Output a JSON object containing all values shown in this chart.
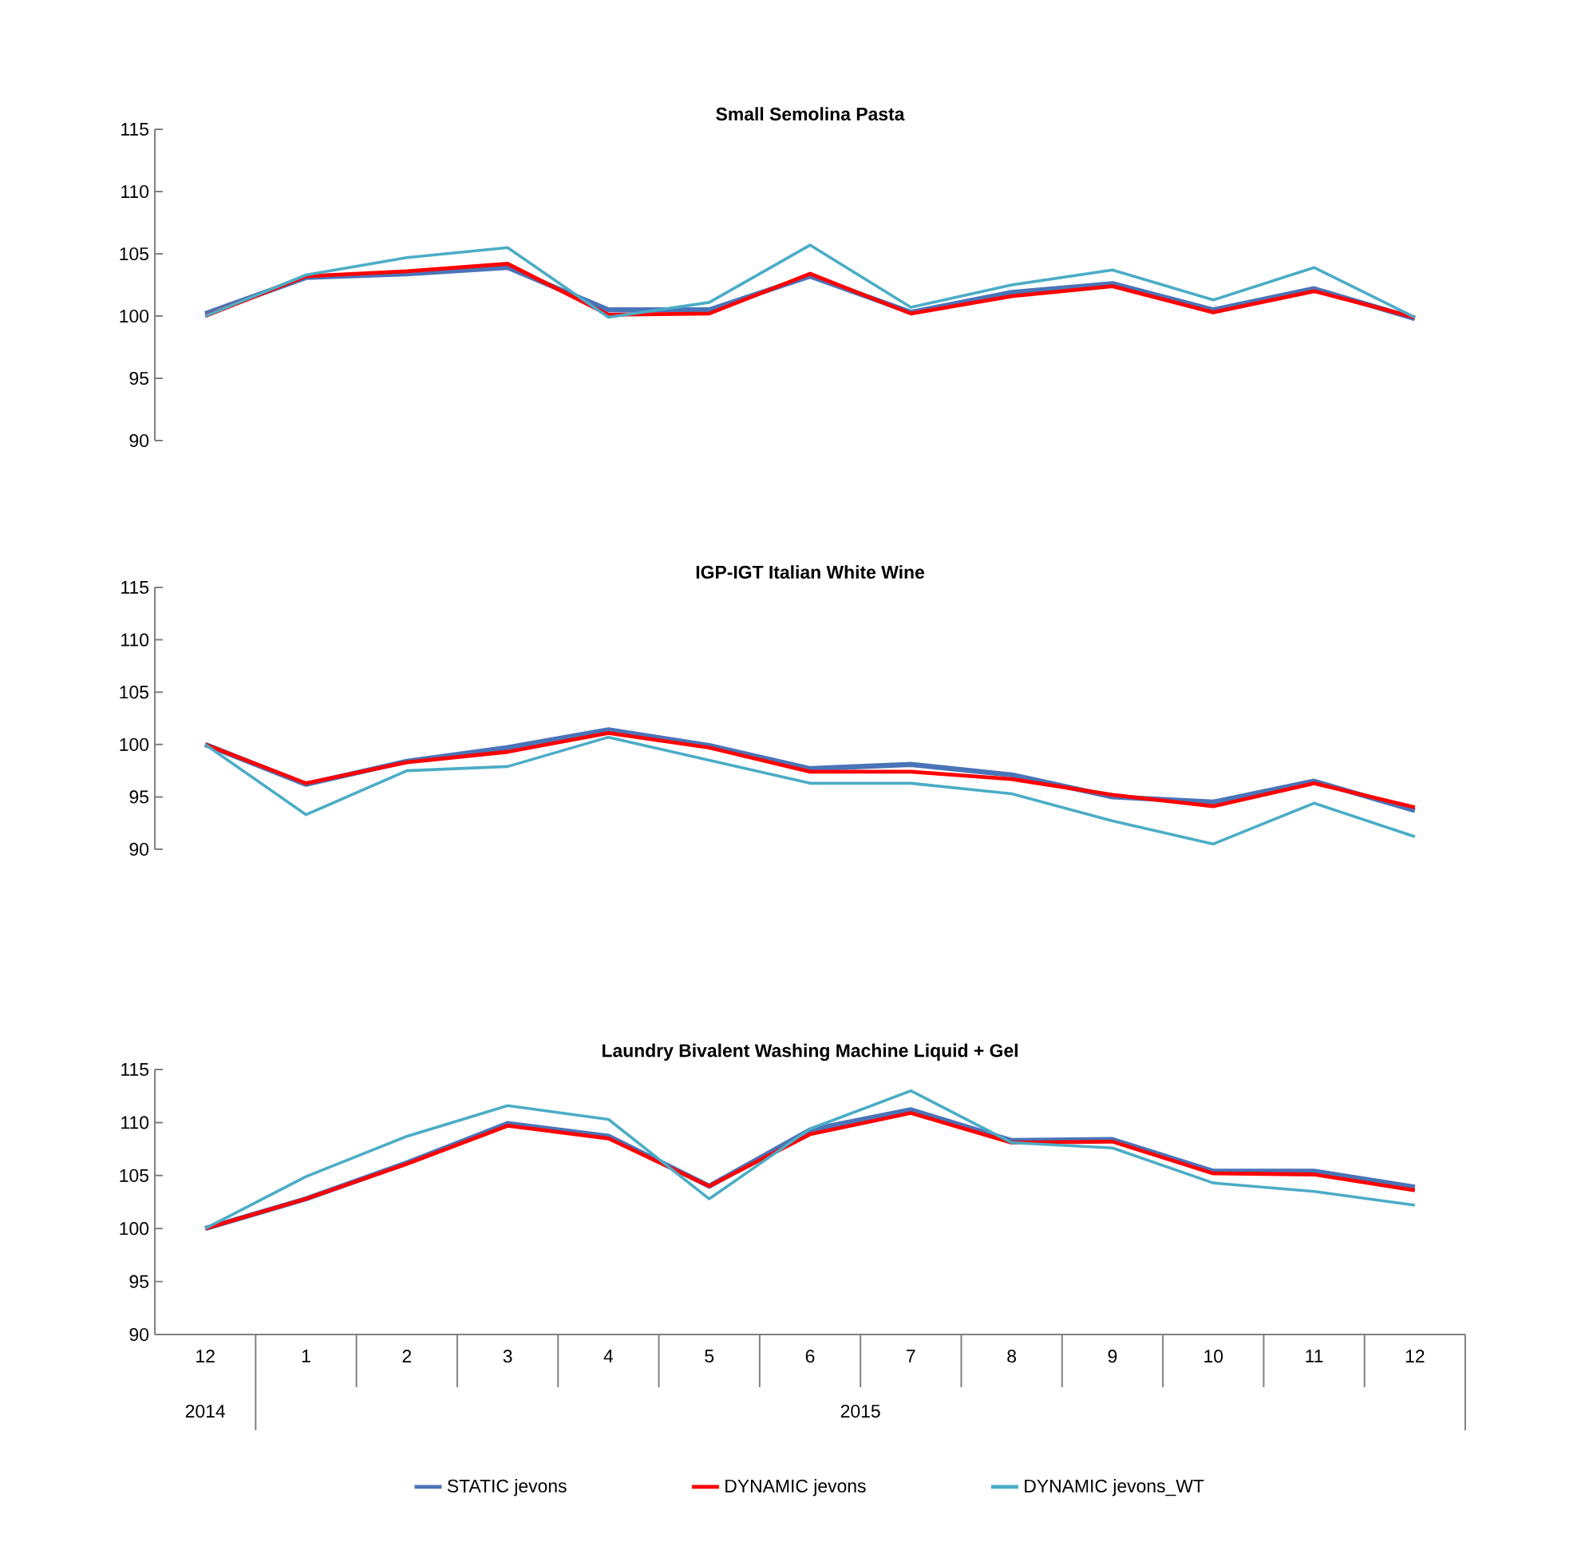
{
  "chart_data": [
    {
      "type": "line",
      "title": "Small Semolina Pasta",
      "categories": [
        "12",
        "1",
        "2",
        "3",
        "4",
        "5",
        "6",
        "7",
        "8",
        "9",
        "10",
        "11",
        "12"
      ],
      "tick_labels": "y",
      "ylim": [
        90,
        115
      ],
      "yticks": [
        90,
        95,
        100,
        105,
        110,
        115
      ],
      "series": [
        {
          "color": "#4a74b8",
          "values": [
            100.2,
            103.1,
            103.4,
            103.9,
            100.5,
            100.5,
            103.2,
            100.3,
            101.9,
            102.6,
            100.5,
            102.2,
            99.8
          ]
        },
        {
          "color": "#ff0000",
          "values": [
            100.0,
            103.2,
            103.6,
            104.2,
            100.1,
            100.2,
            103.4,
            100.2,
            101.6,
            102.4,
            100.3,
            102.0,
            99.9
          ]
        },
        {
          "color": "#4bacc6",
          "values": [
            100.0,
            103.3,
            104.7,
            105.5,
            99.9,
            101.1,
            105.7,
            100.7,
            102.5,
            103.7,
            101.3,
            103.9,
            99.9
          ]
        }
      ]
    },
    {
      "type": "line",
      "title": "IGP-IGT Italian White Wine",
      "categories": [
        "12",
        "1",
        "2",
        "3",
        "4",
        "5",
        "6",
        "7",
        "8",
        "9",
        "10",
        "11",
        "12"
      ],
      "tick_labels": "y",
      "ylim": [
        90,
        115
      ],
      "yticks": [
        90,
        95,
        100,
        105,
        110,
        115
      ],
      "series": [
        {
          "color": "#4a74b8",
          "values": [
            100.0,
            96.2,
            98.4,
            99.7,
            101.4,
            99.9,
            97.7,
            98.1,
            97.1,
            95.0,
            94.5,
            96.5,
            93.7
          ]
        },
        {
          "color": "#ff0000",
          "values": [
            100.0,
            96.3,
            98.3,
            99.3,
            101.1,
            99.7,
            97.4,
            97.4,
            96.7,
            95.2,
            94.1,
            96.3,
            94.0
          ]
        },
        {
          "color": "#4bacc6",
          "values": [
            100.0,
            93.3,
            97.5,
            97.9,
            100.7,
            98.5,
            96.3,
            96.3,
            95.3,
            92.7,
            90.5,
            94.4,
            91.2
          ]
        }
      ]
    },
    {
      "type": "line",
      "title": "Laundry Bivalent Washing Machine Liquid + Gel",
      "categories": [
        "12",
        "1",
        "2",
        "3",
        "4",
        "5",
        "6",
        "7",
        "8",
        "9",
        "10",
        "11",
        "12"
      ],
      "ylim": [
        90,
        115
      ],
      "yticks": [
        90,
        95,
        100,
        105,
        110,
        115
      ],
      "legend": "bottom",
      "annotations": [
        "2014",
        "2015"
      ],
      "series": [
        {
          "name": "STATIC jevons",
          "color": "#4a74b8",
          "values": [
            100.0,
            102.8,
            106.2,
            109.9,
            108.7,
            104.0,
            109.3,
            111.2,
            108.3,
            108.4,
            105.4,
            105.4,
            103.9
          ]
        },
        {
          "name": "DYNAMIC jevons",
          "color": "#ff0000",
          "values": [
            100.0,
            102.8,
            106.1,
            109.7,
            108.5,
            104.0,
            108.9,
            110.9,
            108.1,
            108.2,
            105.2,
            105.1,
            103.6
          ]
        },
        {
          "name": "DYNAMIC jevons_WT",
          "color": "#4bacc6",
          "values": [
            100.0,
            104.9,
            108.7,
            111.6,
            110.3,
            102.8,
            109.4,
            113.0,
            108.1,
            107.6,
            104.3,
            103.5,
            102.2
          ]
        }
      ]
    }
  ]
}
